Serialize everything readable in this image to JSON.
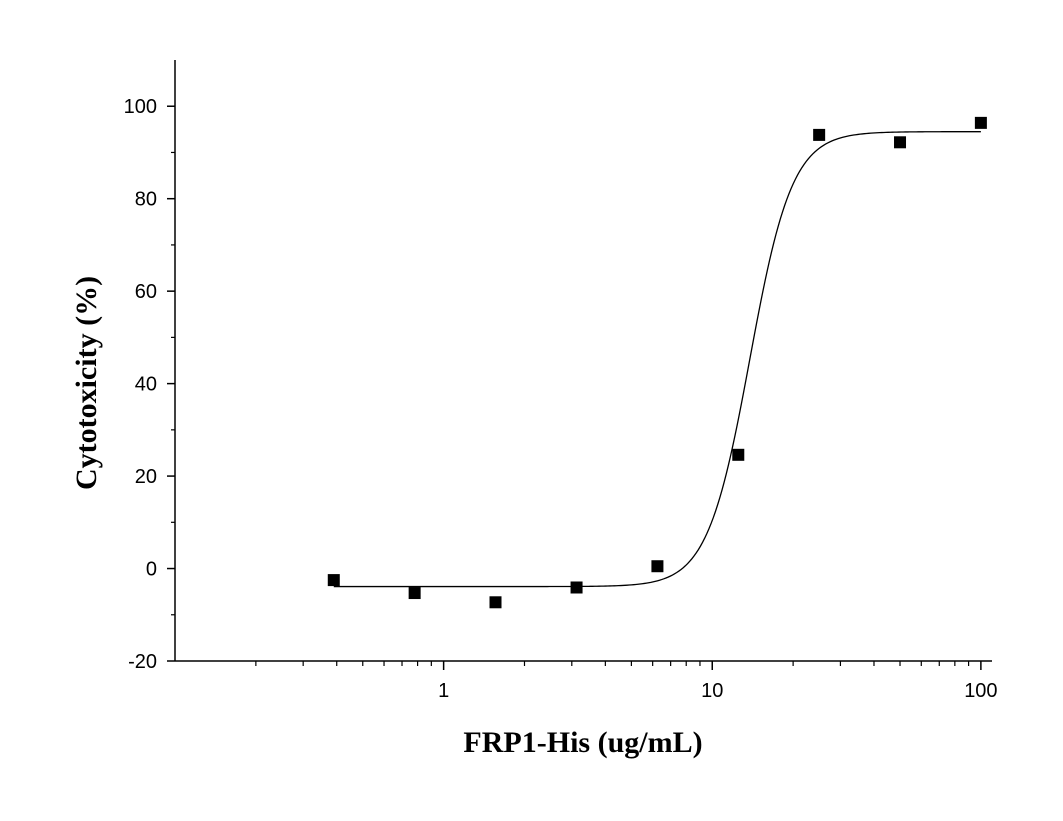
{
  "chart_data": {
    "type": "scatter",
    "title": "",
    "xlabel": "FRP1-His (ug/mL)",
    "ylabel": "Cytotoxicity (%)",
    "x_scale": "log",
    "xlim": [
      0.1,
      110
    ],
    "ylim": [
      -20,
      110
    ],
    "x_ticks": [
      1,
      10,
      100
    ],
    "x_tick_labels": [
      "1",
      "10",
      "100"
    ],
    "y_ticks": [
      -20,
      0,
      20,
      40,
      60,
      80,
      100
    ],
    "y_tick_labels": [
      "-20",
      "0",
      "20",
      "40",
      "60",
      "80",
      "100"
    ],
    "grid": false,
    "legend": "none",
    "series": [
      {
        "marker": "square",
        "color": "#000000",
        "x": [
          0.39,
          0.78,
          1.56,
          3.125,
          6.25,
          12.5,
          25,
          50,
          100
        ],
        "y": [
          -2.5,
          -5.3,
          -7.3,
          -4.1,
          0.5,
          24.6,
          93.8,
          92.2,
          96.4
        ]
      }
    ],
    "fit_curve": {
      "type": "logistic",
      "color": "#000000",
      "bottom": -3.9,
      "top": 94.5,
      "ec50": 13.8,
      "hill": 5.5,
      "x_range": [
        0.39,
        100
      ]
    }
  }
}
